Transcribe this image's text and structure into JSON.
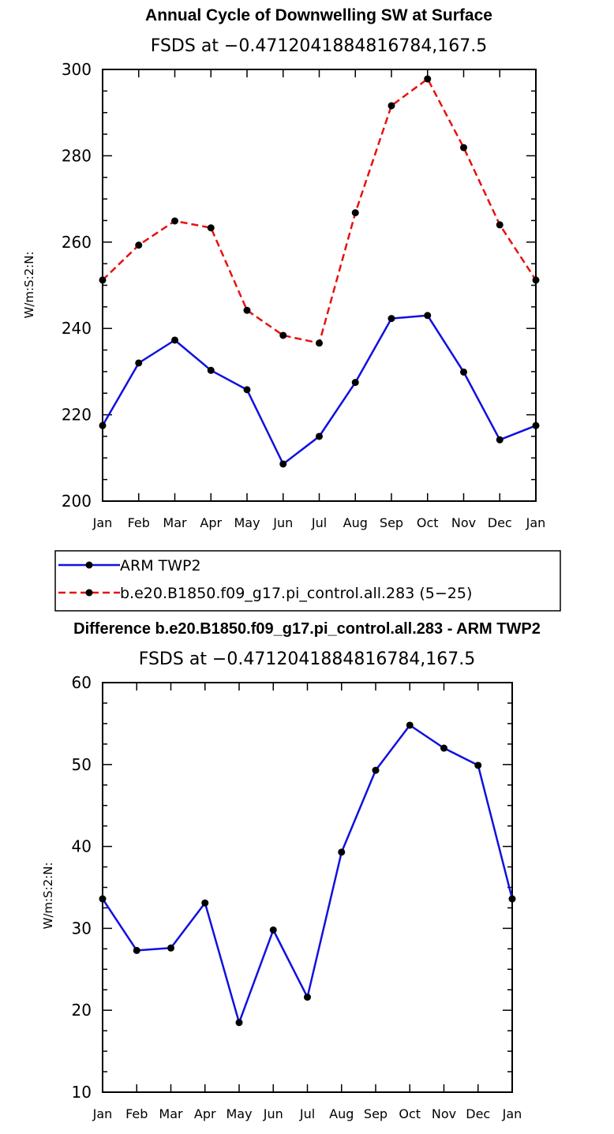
{
  "chart_data": [
    {
      "type": "line",
      "title": "Annual Cycle of Downwelling SW at Surface",
      "subtitle": "FSDS at −0.4712041884816784,167.5",
      "ylabel": "W/m:S:2:N:",
      "xlabel": "",
      "categories": [
        "Jan",
        "Feb",
        "Mar",
        "Apr",
        "May",
        "Jun",
        "Jul",
        "Aug",
        "Sep",
        "Oct",
        "Nov",
        "Dec",
        "Jan"
      ],
      "ylim": [
        200,
        300
      ],
      "yticks": [
        200,
        220,
        240,
        260,
        280,
        300
      ],
      "series": [
        {
          "name": "ARM TWP2",
          "color": "#1010e0",
          "dash": "solid",
          "values": [
            217.5,
            232,
            237.3,
            230.3,
            225.8,
            208.6,
            215,
            227.5,
            242.3,
            243,
            229.9,
            214.2,
            217.5
          ]
        },
        {
          "name": "b.e20.B1850.f09_g17.pi_control.all.283 (5−25)",
          "color": "#e81010",
          "dash": "dashed",
          "values": [
            251.2,
            259.3,
            264.9,
            263.3,
            244.2,
            238.4,
            236.6,
            266.8,
            291.6,
            297.8,
            281.9,
            264,
            251.2
          ]
        }
      ],
      "legend": [
        {
          "label": "ARM TWP2",
          "color": "#1010e0",
          "dash": "solid"
        },
        {
          "label": "b.e20.B1850.f09_g17.pi_control.all.283 (5−25)",
          "color": "#e81010",
          "dash": "dashed"
        }
      ]
    },
    {
      "type": "line",
      "title": "Difference b.e20.B1850.f09_g17.pi_control.all.283 - ARM TWP2",
      "subtitle": "FSDS at −0.4712041884816784,167.5",
      "ylabel": "W/m:S:2:N:",
      "xlabel": "",
      "categories": [
        "Jan",
        "Feb",
        "Mar",
        "Apr",
        "May",
        "Jun",
        "Jul",
        "Aug",
        "Sep",
        "Oct",
        "Nov",
        "Dec",
        "Jan"
      ],
      "ylim": [
        10,
        60
      ],
      "yticks": [
        10,
        20,
        30,
        40,
        50,
        60
      ],
      "series": [
        {
          "name": "Difference",
          "color": "#1010e0",
          "dash": "solid",
          "values": [
            33.6,
            27.3,
            27.6,
            33.1,
            18.5,
            29.8,
            21.6,
            39.3,
            49.3,
            54.8,
            52,
            49.9,
            33.6
          ]
        }
      ]
    }
  ]
}
